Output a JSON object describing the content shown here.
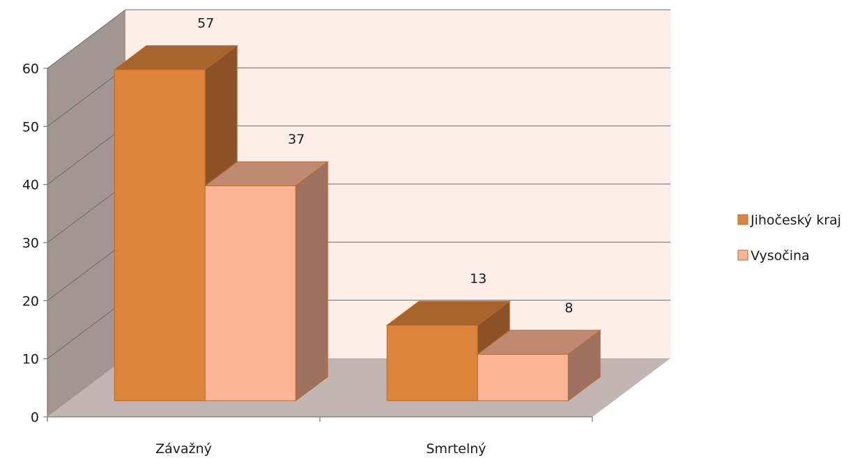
{
  "chart_data": {
    "type": "bar",
    "categories": [
      "Závažný",
      "Smrtelný"
    ],
    "series": [
      {
        "name": "Jihočeský kraj",
        "values": [
          57,
          13
        ],
        "color": "#dc843a"
      },
      {
        "name": "Vysočina",
        "values": [
          37,
          8
        ],
        "color": "#fbb595"
      }
    ],
    "ylim": [
      0,
      60
    ],
    "yticks": [
      0,
      10,
      20,
      30,
      40,
      50,
      60
    ],
    "grid": true,
    "legend_position": "right",
    "colors": {
      "back_wall": "#fdeee8",
      "side_wall": "#a29692",
      "floor": "#c2b6b2",
      "gridline": "#6b6b6b"
    }
  }
}
